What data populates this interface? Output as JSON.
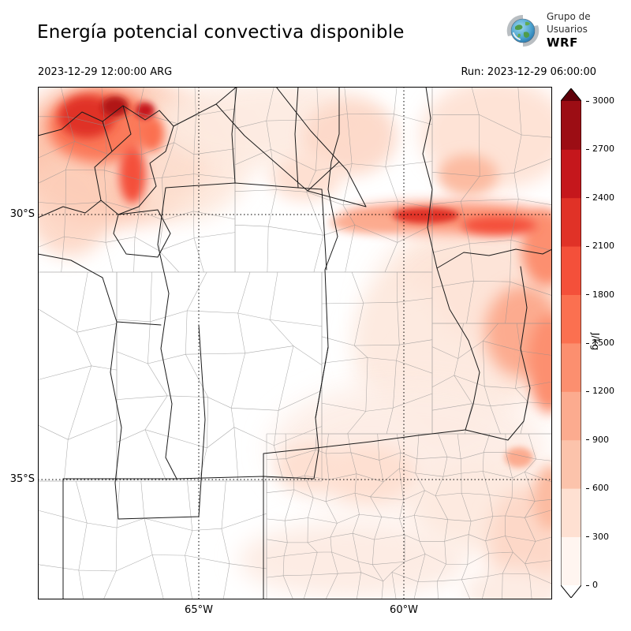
{
  "header": {
    "title": "Energía potencial convectiva disponible",
    "valid_time": "2023-12-29 12:00:00 ARG",
    "run_label": "Run: 2023-12-29 06:00:00",
    "logo": {
      "line1": "Grupo de",
      "line2": "Usuarios",
      "line3": "WRF"
    }
  },
  "map": {
    "lat_tick_labels": [
      "30°S",
      "35°S"
    ],
    "lon_tick_labels": [
      "65°W",
      "60°W"
    ]
  },
  "colorbar": {
    "units_label": "J/kg",
    "ticks": [
      0,
      300,
      600,
      900,
      1200,
      1500,
      1800,
      2100,
      2400,
      2700,
      3000
    ],
    "band_colors_bottom_to_top": [
      "#fff5f0",
      "#fee0d2",
      "#fcc3ab",
      "#fcab8f",
      "#fc8f6f",
      "#fb7050",
      "#f4503a",
      "#e03227",
      "#c5171c",
      "#9c0d14"
    ],
    "under_arrow_color": "#ffffff",
    "over_arrow_color": "#5f0009"
  },
  "chart_data": {
    "type": "heatmap",
    "title": "Energía potencial convectiva disponible",
    "variable_units": "J/kg",
    "valid_time": "2023-12-29 12:00:00 ARG",
    "model_run": "Run: 2023-12-29 06:00:00",
    "levels": [
      0,
      300,
      600,
      900,
      1200,
      1500,
      1800,
      2100,
      2400,
      2700,
      3000
    ],
    "colormap": "white to dark red (Reds), with over-range dark-red arrow and under-range white arrow",
    "lat_gridlines": [
      "30°S",
      "35°S"
    ],
    "lon_gridlines": [
      "65°W",
      "60°W"
    ],
    "legend_position": "right vertical colorbar",
    "regions": [
      {
        "area": "northwest corner of map (mountain area)",
        "value_range_jkg": [
          600,
          2100
        ]
      },
      {
        "area": "zonal band just north of 30°S on the eastern half",
        "value_range_jkg": [
          600,
          1500
        ]
      },
      {
        "area": "eastern edge between 30°S and 33°S",
        "value_range_jkg": [
          300,
          1200
        ]
      },
      {
        "area": "northern edge / top center of map",
        "value_range_jkg": [
          0,
          600
        ]
      },
      {
        "area": "southeast quadrant (dense department mesh region)",
        "value_range_jkg": [
          0,
          300
        ]
      },
      {
        "area": "central and southwestern areas",
        "value_range_jkg": [
          0,
          0
        ]
      }
    ]
  }
}
